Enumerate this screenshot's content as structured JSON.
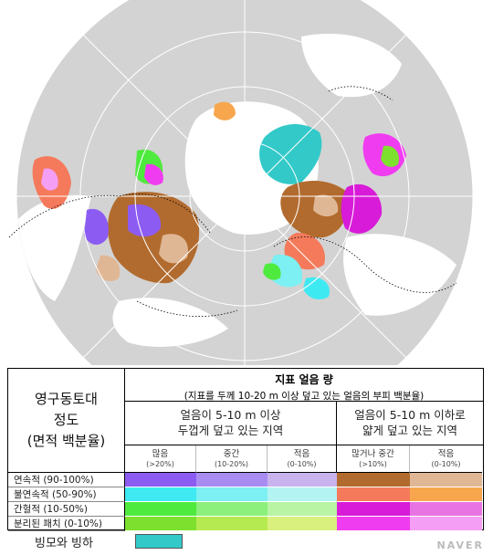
{
  "map": {
    "background_ocean": "#ffffff",
    "land_gray": "#d3d3d3",
    "outside_disk": "#ffffff"
  },
  "legend": {
    "left_title": "영구동토대\n정도\n(면적 백분율)",
    "header_title": "지표 얼음 량",
    "header_sub": "(지표를 두께 10-20 m 이상 덮고 있는 얼음의 부피 백분율)",
    "thick_label": "얼음이 5-10 m 이상\n두껍게 덮고 있는 지역",
    "thin_label": "얼음이 5-10 m 이하로\n얇게 덮고 있는 지역",
    "categories": [
      {
        "name": "많음",
        "range": "(>20%)"
      },
      {
        "name": "중간",
        "range": "(10-20%)"
      },
      {
        "name": "적음",
        "range": "(0-10%)"
      },
      {
        "name": "많거나 중간",
        "range": "(>10%)"
      },
      {
        "name": "적음",
        "range": "(0-10%)"
      }
    ],
    "rows": [
      {
        "label": "연속적 (90-100%)",
        "colors": [
          "#8c5cf2",
          "#a98cf2",
          "#c9b3ef",
          "#b26b2e",
          "#e0b795"
        ]
      },
      {
        "label": "불연속적 (50-90%)",
        "colors": [
          "#3fe9f2",
          "#7cf0f2",
          "#b3f3f2",
          "#f57a5b",
          "#f7a64d"
        ]
      },
      {
        "label": "간헐적 (10-50%)",
        "colors": [
          "#4fea3e",
          "#8cf07c",
          "#b9f4a5",
          "#d81bd8",
          "#e874e3"
        ]
      },
      {
        "label": "분리된 패치 (0-10%)",
        "colors": [
          "#7de02e",
          "#b6ea51",
          "#d9f07e",
          "#f03cf0",
          "#f59ef5"
        ]
      }
    ],
    "glacier_label": "빙모와 빙하",
    "glacier_color": "#33c9c9"
  },
  "watermark": "NAVER"
}
